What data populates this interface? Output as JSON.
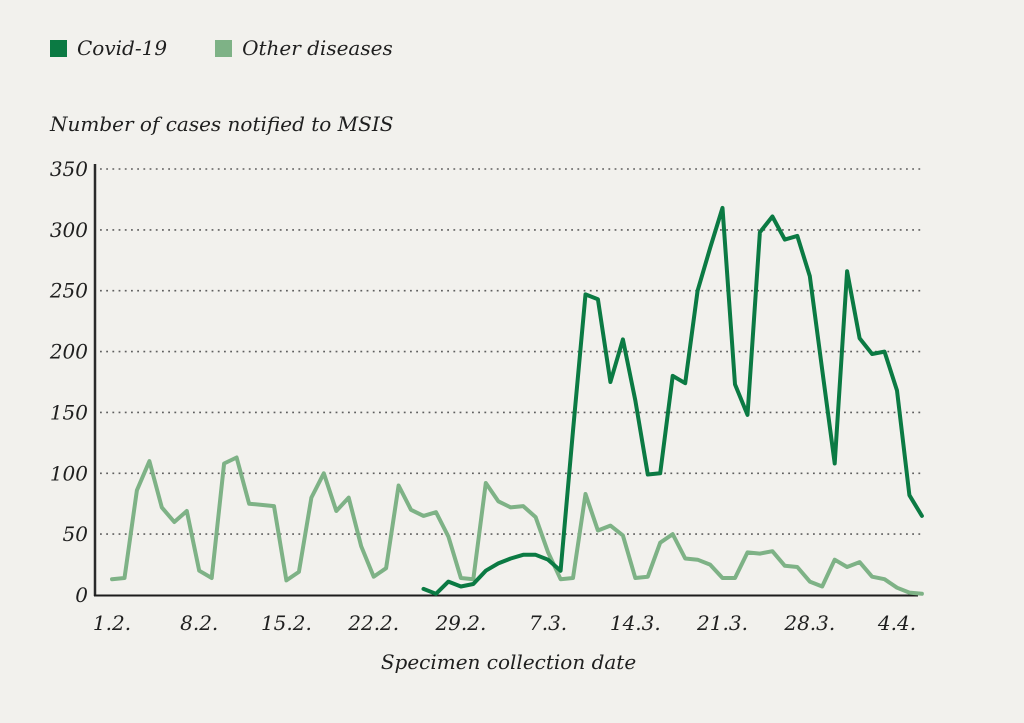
{
  "legend": [
    {
      "label": "Covid-19",
      "color": "#0b7a43"
    },
    {
      "label": "Other diseases",
      "color": "#7eb286"
    }
  ],
  "colors": {
    "background": "#f2f1ed",
    "covid_line": "#0b7a43",
    "other_line": "#7eb286",
    "axis": "#2a2a2a",
    "grid_dots": "#5f5f5f",
    "text": "#1f1f1f"
  },
  "chart_data": {
    "type": "line",
    "title": "",
    "ylabel": "Number of cases notified to MSIS",
    "xlabel": "Specimen collection date",
    "ylim": [
      0,
      350
    ],
    "yticks": [
      0,
      50,
      100,
      150,
      200,
      250,
      300,
      350
    ],
    "grid": "horizontal dotted lines at each y tick",
    "legend_position": "top-left",
    "x_unit": "daily specimen collection dates, day 0 = 1.2. (Feb 1) through day 65 (Apr 6)",
    "xtick_positions": [
      0,
      7,
      14,
      21,
      28,
      35,
      42,
      49,
      56,
      63
    ],
    "xtick_labels": [
      "1.2.",
      "8.2.",
      "15.2.",
      "22.2.",
      "29.2.",
      "7.3.",
      "14.3.",
      "21.3.",
      "28.3.",
      "4.4."
    ],
    "series": [
      {
        "name": "Covid-19",
        "color": "#0b7a43",
        "start_index": 25,
        "values": [
          5,
          1,
          11,
          7,
          9,
          20,
          26,
          30,
          33,
          33,
          29,
          20,
          135,
          247,
          243,
          175,
          210,
          160,
          99,
          100,
          180,
          174,
          250,
          285,
          318,
          173,
          148,
          298,
          311,
          292,
          295,
          262,
          185,
          108,
          266,
          211,
          198,
          200,
          168,
          82,
          65
        ]
      },
      {
        "name": "Other diseases",
        "color": "#7eb286",
        "start_index": 0,
        "values": [
          13,
          14,
          86,
          110,
          72,
          60,
          69,
          20,
          14,
          108,
          113,
          75,
          74,
          73,
          12,
          19,
          80,
          100,
          69,
          80,
          40,
          15,
          22,
          90,
          70,
          65,
          68,
          48,
          14,
          13,
          92,
          77,
          72,
          73,
          64,
          35,
          13,
          14,
          83,
          53,
          57,
          49,
          14,
          15,
          43,
          50,
          30,
          29,
          25,
          14,
          14,
          35,
          34,
          36,
          24,
          23,
          11,
          7,
          29,
          23,
          27,
          15,
          13,
          6,
          2,
          1
        ]
      }
    ]
  }
}
